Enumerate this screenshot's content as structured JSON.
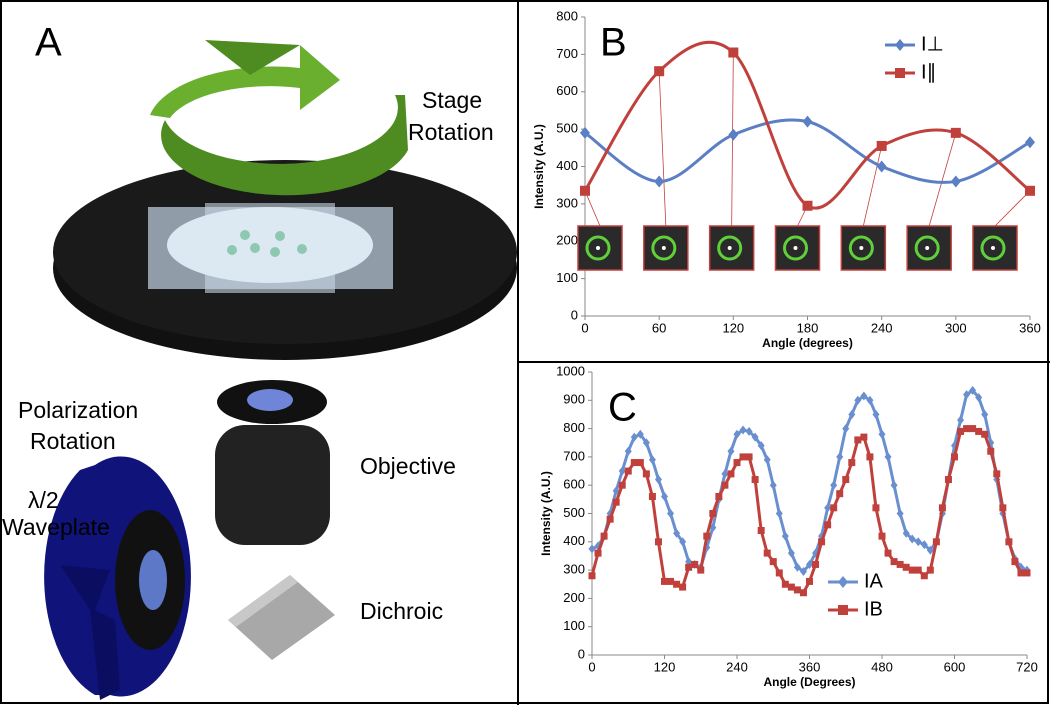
{
  "panel_a": {
    "label": "A",
    "stage": "Stage",
    "stage_rotation": "Rotation",
    "polarization": "Polarization",
    "polarization_rotation": "Rotation",
    "waveplate_symbol": "λ/2",
    "waveplate": "Waveplate",
    "objective": "Objective",
    "dichroic": "Dichroic"
  },
  "chart_data": [
    {
      "type": "line",
      "label": "B",
      "smooth": true,
      "legend": "upper right",
      "xlabel": "Angle (degrees)",
      "ylabel": "Intensity (A.U.)",
      "x": [
        0,
        60,
        120,
        180,
        240,
        300,
        360
      ],
      "series": [
        {
          "name": "I⊥",
          "color": "#5b7fc4",
          "marker": "diamond",
          "values": [
            490,
            360,
            485,
            520,
            400,
            360,
            465
          ]
        },
        {
          "name": "I∥",
          "color": "#c0403c",
          "marker": "square",
          "values": [
            335,
            655,
            705,
            295,
            455,
            490,
            335
          ]
        }
      ],
      "xlim": [
        0,
        360
      ],
      "xticks": [
        0,
        60,
        120,
        180,
        240,
        300,
        360
      ],
      "ylim": [
        0,
        800
      ],
      "yticks": [
        0,
        100,
        200,
        300,
        400,
        500,
        600,
        700,
        800
      ]
    },
    {
      "type": "line",
      "label": "C",
      "smooth": false,
      "legend": "lower center",
      "xlabel": "Angle (Degrees)",
      "ylabel": "Intensity (A.U.)",
      "x": [
        0,
        10,
        20,
        30,
        40,
        50,
        60,
        70,
        80,
        90,
        100,
        110,
        120,
        130,
        140,
        150,
        160,
        170,
        180,
        190,
        200,
        210,
        220,
        230,
        240,
        250,
        260,
        270,
        280,
        290,
        300,
        310,
        320,
        330,
        340,
        350,
        360,
        370,
        380,
        390,
        400,
        410,
        420,
        430,
        440,
        450,
        460,
        470,
        480,
        490,
        500,
        510,
        520,
        530,
        540,
        550,
        560,
        570,
        580,
        590,
        600,
        610,
        620,
        630,
        640,
        650,
        660,
        670,
        680,
        690,
        700,
        710,
        720
      ],
      "series": [
        {
          "name": "IA",
          "color": "#6a8fd0",
          "marker": "diamond",
          "values": [
            375,
            385,
            420,
            500,
            580,
            650,
            720,
            770,
            780,
            750,
            690,
            620,
            560,
            500,
            430,
            400,
            330,
            320,
            310,
            380,
            450,
            550,
            640,
            720,
            780,
            795,
            790,
            770,
            740,
            690,
            600,
            500,
            420,
            360,
            310,
            295,
            320,
            360,
            420,
            520,
            600,
            700,
            800,
            850,
            900,
            915,
            900,
            850,
            780,
            700,
            600,
            500,
            430,
            410,
            400,
            390,
            370,
            400,
            500,
            620,
            740,
            830,
            920,
            935,
            910,
            850,
            750,
            620,
            500,
            400,
            340,
            310,
            300
          ]
        },
        {
          "name": "IB",
          "color": "#c0403c",
          "marker": "square",
          "values": [
            280,
            360,
            420,
            480,
            540,
            600,
            650,
            680,
            680,
            640,
            560,
            400,
            260,
            260,
            250,
            240,
            310,
            320,
            300,
            420,
            500,
            560,
            600,
            640,
            680,
            700,
            700,
            620,
            440,
            360,
            330,
            290,
            250,
            240,
            230,
            220,
            260,
            320,
            400,
            460,
            520,
            570,
            620,
            680,
            760,
            770,
            700,
            520,
            420,
            360,
            330,
            320,
            310,
            300,
            300,
            280,
            300,
            400,
            520,
            620,
            700,
            790,
            800,
            800,
            790,
            780,
            720,
            640,
            520,
            400,
            330,
            290,
            290
          ]
        }
      ],
      "xlim": [
        0,
        720
      ],
      "xticks": [
        0,
        120,
        240,
        360,
        480,
        600,
        720
      ],
      "ylim": [
        0,
        1000
      ],
      "yticks": [
        0,
        100,
        200,
        300,
        400,
        500,
        600,
        700,
        800,
        900,
        1000
      ]
    }
  ]
}
